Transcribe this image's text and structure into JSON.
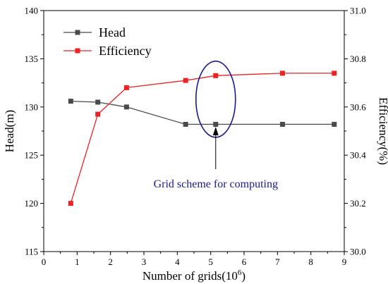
{
  "chart_data": {
    "type": "line",
    "xlabel": "Number of grids(10",
    "xlabel_sup": "6",
    "xlabel_tail": ")",
    "ylabel_left": "Head(m)",
    "ylabel_right": "Efficiency(%)",
    "xlim": [
      0,
      9
    ],
    "ylim_left": [
      115,
      140
    ],
    "ylim_right": [
      30.0,
      31.0
    ],
    "x_ticks": [
      0,
      1,
      2,
      3,
      4,
      5,
      6,
      7,
      8,
      9
    ],
    "y_left_ticks": [
      115,
      120,
      125,
      130,
      135,
      140
    ],
    "y_right_ticks": [
      "30.0",
      "30.2",
      "30.4",
      "30.6",
      "30.8",
      "31.0"
    ],
    "legend_position": "top-left",
    "series": [
      {
        "name": "Head",
        "axis": "left",
        "color": "#4a4a4a",
        "x": [
          0.81,
          1.62,
          2.48,
          4.25,
          5.15,
          7.15,
          8.7
        ],
        "y": [
          130.6,
          130.5,
          130.0,
          128.2,
          128.2,
          128.2,
          128.2
        ]
      },
      {
        "name": "Efficiency",
        "axis": "right",
        "color": "#ee2222",
        "x": [
          0.81,
          1.62,
          2.48,
          4.25,
          5.15,
          7.15,
          8.7
        ],
        "y": [
          30.2,
          30.57,
          30.68,
          30.71,
          30.73,
          30.74,
          30.74
        ]
      }
    ],
    "annotation": {
      "text": "Grid scheme for computing",
      "color": "#1a1a8c",
      "ellipse_center_x": 5.15,
      "ellipse_center_y_left": 130.8
    }
  }
}
